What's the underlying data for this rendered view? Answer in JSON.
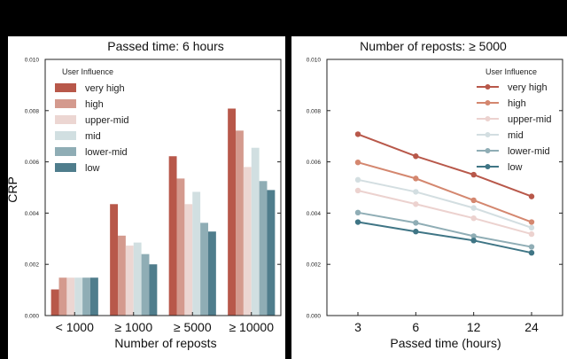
{
  "chart_data": [
    {
      "type": "bar",
      "title": "Passed time: 6 hours",
      "xlabel": "Number of reposts",
      "ylabel": "CRP",
      "categories": [
        "< 1000",
        "≥ 1000",
        "≥ 5000",
        "≥ 10000"
      ],
      "ylim": [
        0,
        0.01
      ],
      "yticks": [
        "0.000",
        "0.002",
        "0.004",
        "0.006",
        "0.008",
        "0.010"
      ],
      "legend_title": "User Influence",
      "legend_position": "top-left",
      "series": [
        {
          "name": "very high",
          "color": "#b8584a",
          "values": [
            0.00102,
            0.00435,
            0.00622,
            0.00808
          ]
        },
        {
          "name": "high",
          "color": "#d49a8e",
          "values": [
            0.00148,
            0.00312,
            0.00535,
            0.00722
          ]
        },
        {
          "name": "upper-mid",
          "color": "#ecd6d2",
          "values": [
            0.00148,
            0.00273,
            0.00435,
            0.0058
          ]
        },
        {
          "name": "mid",
          "color": "#d1dfe1",
          "values": [
            0.00148,
            0.00285,
            0.00483,
            0.00655
          ]
        },
        {
          "name": "lower-mid",
          "color": "#8fadb5",
          "values": [
            0.00148,
            0.0024,
            0.00362,
            0.00525
          ]
        },
        {
          "name": "low",
          "color": "#4f7d8c",
          "values": [
            0.00148,
            0.002,
            0.00328,
            0.0049
          ]
        }
      ]
    },
    {
      "type": "line",
      "title": "Number of reposts: ≥ 5000",
      "xlabel": "Passed time (hours)",
      "categories": [
        "3",
        "6",
        "12",
        "24"
      ],
      "ylim": [
        0,
        0.01
      ],
      "yticks": [
        "0.000",
        "0.002",
        "0.004",
        "0.006",
        "0.008",
        "0.010"
      ],
      "legend_title": "User Influence",
      "legend_position": "top-right",
      "series": [
        {
          "name": "very high",
          "color": "#b8584a",
          "values": [
            0.00708,
            0.00622,
            0.0055,
            0.00465
          ]
        },
        {
          "name": "high",
          "color": "#d4876f",
          "values": [
            0.00598,
            0.00535,
            0.0045,
            0.00365
          ]
        },
        {
          "name": "upper-mid",
          "color": "#ecd2cf",
          "values": [
            0.00488,
            0.00435,
            0.0038,
            0.00318
          ]
        },
        {
          "name": "mid",
          "color": "#d3dee1",
          "values": [
            0.0053,
            0.00483,
            0.0042,
            0.00343
          ]
        },
        {
          "name": "lower-mid",
          "color": "#8fadb5",
          "values": [
            0.00402,
            0.00362,
            0.0031,
            0.00268
          ]
        },
        {
          "name": "low",
          "color": "#3f7585",
          "values": [
            0.00365,
            0.00328,
            0.00293,
            0.00245
          ]
        }
      ]
    }
  ]
}
